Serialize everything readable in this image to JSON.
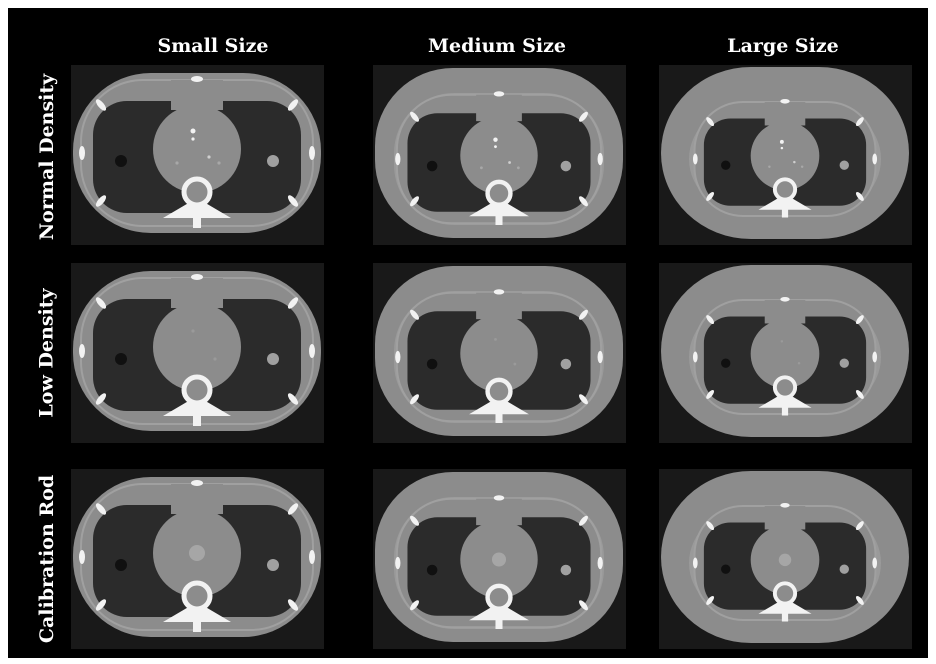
{
  "columns": [
    "Small Size",
    "Medium Size",
    "Large Size"
  ],
  "rows": [
    "Normal Density",
    "Low Density",
    "Calibration Rod"
  ],
  "colors": {
    "background": "#000000",
    "panel_background": "#191919",
    "tissue_gray": "#8c8c8c",
    "lung_dark": "#2b2b2b",
    "bone_white": "#f2f2f2"
  },
  "panels": [
    {
      "row": "Normal Density",
      "size": "Small Size",
      "insert": "normal-density"
    },
    {
      "row": "Normal Density",
      "size": "Medium Size",
      "insert": "normal-density"
    },
    {
      "row": "Normal Density",
      "size": "Large Size",
      "insert": "normal-density"
    },
    {
      "row": "Low Density",
      "size": "Small Size",
      "insert": "low-density"
    },
    {
      "row": "Low Density",
      "size": "Medium Size",
      "insert": "low-density"
    },
    {
      "row": "Low Density",
      "size": "Large Size",
      "insert": "low-density"
    },
    {
      "row": "Calibration Rod",
      "size": "Small Size",
      "insert": "calibration-rod"
    },
    {
      "row": "Calibration Rod",
      "size": "Medium Size",
      "insert": "calibration-rod"
    },
    {
      "row": "Calibration Rod",
      "size": "Large Size",
      "insert": "calibration-rod"
    }
  ]
}
